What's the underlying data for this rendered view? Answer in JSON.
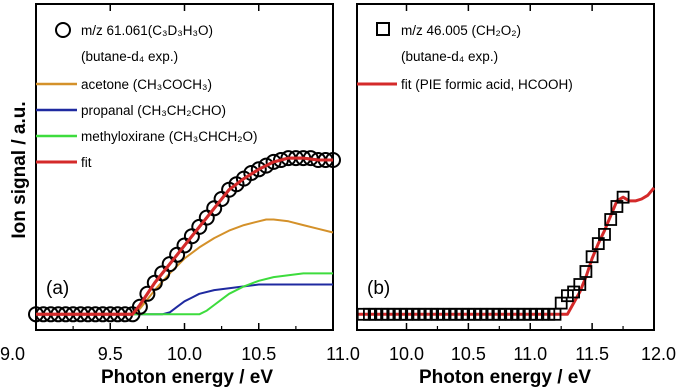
{
  "chart_data": [
    {
      "panel": "(a)",
      "type": "line",
      "xlabel": "Photon energy / eV",
      "ylabel": "Ion signal / a.u.",
      "xlim": [
        9.0,
        11.0
      ],
      "ylim": [
        0,
        1.0
      ],
      "x_ticks": [
        "9.0",
        "9.5",
        "10.0",
        "10.5",
        "11.0"
      ],
      "grid": false,
      "legend_position": "top-left",
      "series": [
        {
          "name": "m/z 61.061(C3D3H3O) (butane-d4 exp.)",
          "legend_lines": [
            "m/z 61.061(C₃D₃H₃O)",
            "(butane-d₄ exp.)"
          ],
          "style": "open circles",
          "color": "#000000",
          "x": [
            9.0,
            9.05,
            9.1,
            9.15,
            9.2,
            9.25,
            9.3,
            9.35,
            9.4,
            9.45,
            9.5,
            9.55,
            9.6,
            9.65,
            9.7,
            9.75,
            9.8,
            9.85,
            9.9,
            9.95,
            10.0,
            10.05,
            10.1,
            10.15,
            10.2,
            10.25,
            10.3,
            10.35,
            10.4,
            10.45,
            10.5,
            10.55,
            10.6,
            10.65,
            10.7,
            10.75,
            10.8,
            10.85,
            10.9,
            10.95,
            11.0
          ],
          "values": [
            0.02,
            0.02,
            0.02,
            0.02,
            0.02,
            0.02,
            0.02,
            0.02,
            0.02,
            0.02,
            0.02,
            0.02,
            0.02,
            0.02,
            0.06,
            0.13,
            0.19,
            0.24,
            0.29,
            0.34,
            0.39,
            0.44,
            0.49,
            0.54,
            0.59,
            0.64,
            0.69,
            0.72,
            0.75,
            0.78,
            0.8,
            0.82,
            0.84,
            0.85,
            0.86,
            0.86,
            0.86,
            0.86,
            0.85,
            0.85,
            0.85
          ]
        },
        {
          "name": "acetone (CH3COCH3)",
          "legend_label": "acetone (CH₃COCH₃)",
          "style": "line",
          "color": "#d4912a",
          "x": [
            9.0,
            9.6,
            9.65,
            9.7,
            9.8,
            9.9,
            10.0,
            10.1,
            10.2,
            10.3,
            10.4,
            10.5,
            10.55,
            10.6,
            10.7,
            10.8,
            10.9,
            11.0
          ],
          "values": [
            0.02,
            0.02,
            0.02,
            0.05,
            0.15,
            0.24,
            0.32,
            0.38,
            0.43,
            0.47,
            0.5,
            0.52,
            0.53,
            0.53,
            0.52,
            0.5,
            0.48,
            0.46
          ]
        },
        {
          "name": "propanal (CH3CH2CHO)",
          "legend_label": "propanal (CH₃CH₂CHO)",
          "style": "line",
          "color": "#1f2aa0",
          "x": [
            9.0,
            9.85,
            9.9,
            9.95,
            10.0,
            10.05,
            10.1,
            10.2,
            10.3,
            10.4,
            10.5,
            10.6,
            10.7,
            10.8,
            10.9,
            11.0
          ],
          "values": [
            0.02,
            0.02,
            0.03,
            0.06,
            0.09,
            0.11,
            0.13,
            0.15,
            0.16,
            0.17,
            0.18,
            0.18,
            0.18,
            0.18,
            0.18,
            0.18
          ]
        },
        {
          "name": "methyloxirane (CH3CHCH2O)",
          "legend_label": "methyloxirane (CH₃CHCH₂O)",
          "style": "line",
          "color": "#3ddc3d",
          "x": [
            9.0,
            10.1,
            10.15,
            10.2,
            10.25,
            10.3,
            10.4,
            10.5,
            10.6,
            10.7,
            10.8,
            10.9,
            11.0
          ],
          "values": [
            0.02,
            0.02,
            0.04,
            0.07,
            0.1,
            0.13,
            0.17,
            0.2,
            0.22,
            0.23,
            0.24,
            0.24,
            0.24
          ]
        },
        {
          "name": "fit",
          "legend_label": "fit",
          "style": "line",
          "color": "#d42a2a",
          "x": [
            9.0,
            9.6,
            9.65,
            9.7,
            9.8,
            9.9,
            10.0,
            10.1,
            10.2,
            10.3,
            10.4,
            10.5,
            10.6,
            10.7,
            10.8,
            10.9,
            11.0
          ],
          "values": [
            0.02,
            0.02,
            0.02,
            0.07,
            0.19,
            0.29,
            0.39,
            0.49,
            0.59,
            0.69,
            0.75,
            0.8,
            0.84,
            0.86,
            0.86,
            0.85,
            0.85
          ]
        }
      ]
    },
    {
      "panel": "(b)",
      "type": "line",
      "xlabel": "Photon energy / eV",
      "ylabel": "",
      "xlim": [
        9.6,
        12.0
      ],
      "ylim": [
        0,
        1.0
      ],
      "x_ticks": [
        "10.0",
        "10.5",
        "11.0",
        "11.5",
        "12.0"
      ],
      "grid": false,
      "legend_position": "top-left",
      "series": [
        {
          "name": "m/z 46.005 (CH2O2) (butane-d4 exp.)",
          "legend_lines": [
            "m/z 46.005 (CH₂O₂)",
            "(butane-d₄ exp.)"
          ],
          "style": "open squares",
          "color": "#000000",
          "x": [
            9.65,
            9.7,
            9.75,
            9.8,
            9.85,
            9.9,
            9.95,
            10.0,
            10.05,
            10.1,
            10.15,
            10.2,
            10.25,
            10.3,
            10.35,
            10.4,
            10.45,
            10.5,
            10.55,
            10.6,
            10.65,
            10.7,
            10.75,
            10.8,
            10.85,
            10.9,
            10.95,
            11.0,
            11.05,
            11.1,
            11.15,
            11.2,
            11.25,
            11.3,
            11.35,
            11.4,
            11.45,
            11.5,
            11.55,
            11.6,
            11.65,
            11.7,
            11.75
          ],
          "values": [
            0.02,
            0.02,
            0.02,
            0.02,
            0.02,
            0.02,
            0.02,
            0.02,
            0.02,
            0.02,
            0.02,
            0.02,
            0.02,
            0.02,
            0.02,
            0.02,
            0.02,
            0.02,
            0.02,
            0.02,
            0.02,
            0.02,
            0.02,
            0.02,
            0.02,
            0.02,
            0.02,
            0.02,
            0.02,
            0.02,
            0.02,
            0.02,
            0.08,
            0.12,
            0.14,
            0.18,
            0.25,
            0.33,
            0.4,
            0.45,
            0.53,
            0.6,
            0.65
          ]
        },
        {
          "name": "fit (PIE formic acid, HCOOH)",
          "legend_label": "fit (PIE formic acid, HCOOH)",
          "style": "line",
          "color": "#d42a2a",
          "x": [
            9.6,
            11.3,
            11.35,
            11.4,
            11.45,
            11.5,
            11.55,
            11.6,
            11.65,
            11.7,
            11.75,
            11.8,
            11.85,
            11.9,
            11.95,
            12.0
          ],
          "values": [
            0.02,
            0.02,
            0.08,
            0.14,
            0.22,
            0.32,
            0.4,
            0.47,
            0.55,
            0.63,
            0.65,
            0.63,
            0.63,
            0.64,
            0.66,
            0.7
          ]
        }
      ]
    }
  ]
}
